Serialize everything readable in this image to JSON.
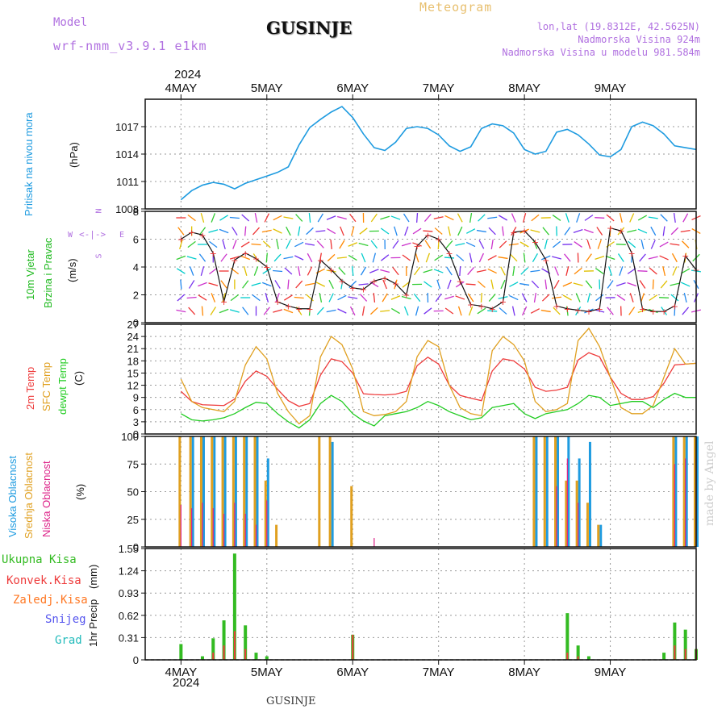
{
  "header": {
    "model_label": "Model",
    "model_name": "wrf-nmm_v3.9.1 e1km",
    "title": "GUSINJE",
    "product": "Meteogram",
    "lonlat": "lon,lat (19.8312E, 42.5625N)",
    "altitude": "Nadmorska Visina 924m",
    "model_altitude": "Nadmorska Visina u modelu 981.584m"
  },
  "footer": {
    "station": "GUSINJE",
    "credit": "made by Angel"
  },
  "colors": {
    "pressure": "#1e9be0",
    "temp": "#ee3b3b",
    "sfc_temp": "#e0a020",
    "dewpt": "#22cc22",
    "high_cloud": "#1e9be0",
    "mid_cloud": "#e0a020",
    "low_cloud": "#dd2288",
    "total_precip": "#33bb22",
    "conv_precip": "#ee3b3b",
    "frozen_precip": "#ff7722",
    "snow": "#5555ee",
    "grad": "#22bbbb",
    "wind_label": "#22bb22",
    "header_purple": "#b070e0"
  },
  "chart_data": {
    "type": "line",
    "year": "2024",
    "days": [
      "4MAY",
      "5MAY",
      "6MAY",
      "7MAY",
      "8MAY",
      "9MAY"
    ],
    "hours": [
      0,
      3,
      6,
      9,
      12,
      15,
      18,
      21,
      24,
      27,
      30,
      33,
      36,
      39,
      42,
      45,
      48,
      51,
      54,
      57,
      60,
      63,
      66,
      69,
      72,
      75,
      78,
      81,
      84,
      87,
      90,
      93,
      96,
      99,
      102,
      105,
      108,
      111,
      114,
      117,
      120,
      123,
      126,
      129,
      132,
      135,
      138,
      141,
      144
    ],
    "x_axis": {
      "start_hour": -10,
      "end_hour": 144,
      "note": "hours from 4MAY 00UTC"
    },
    "panels": [
      {
        "name": "pressure",
        "ylabel": "Pritisak na nivou mora",
        "units": "(hPa)",
        "yticks": [
          "1008",
          "1011",
          "1014",
          "1017"
        ],
        "ylim": [
          1008,
          1020
        ],
        "grid": true,
        "series": [
          {
            "values": [
              1009.0,
              1010.0,
              1010.6,
              1010.9,
              1010.7,
              1010.2,
              1010.8,
              1011.2,
              1011.6,
              1012.0,
              1012.6,
              1015.0,
              1016.9,
              1017.8,
              1018.6,
              1019.2,
              1018.0,
              1016.2,
              1014.7,
              1014.4,
              1015.3,
              1016.8,
              1017.0,
              1016.8,
              1016.1,
              1014.9,
              1014.3,
              1014.8,
              1016.8,
              1017.3,
              1017.1,
              1016.3,
              1014.5,
              1014.0,
              1014.3,
              1016.4,
              1016.7,
              1016.1,
              1015.1,
              1013.9,
              1013.7,
              1014.5,
              1017.0,
              1017.5,
              1017.1,
              1016.2,
              1014.9,
              1014.7,
              1014.5
            ]
          }
        ]
      },
      {
        "name": "wind",
        "ylabel_lines": [
          "10m Vjetar",
          "Brzina i Pravac"
        ],
        "units": "(m/s)",
        "yticks": [
          "0",
          "2",
          "4",
          "6",
          "8"
        ],
        "ylim": [
          0,
          8
        ],
        "compass": {
          "n": "N",
          "s": "S",
          "e": "E",
          "w": "W"
        },
        "grid": true,
        "series": [
          {
            "values": [
              6.0,
              6.5,
              6.3,
              5.0,
              1.5,
              4.5,
              5.0,
              4.6,
              4.0,
              1.5,
              1.2,
              1.0,
              1.0,
              4.5,
              3.8,
              3.0,
              2.5,
              2.4,
              3.0,
              3.2,
              2.8,
              2.0,
              5.5,
              6.3,
              6.0,
              5.0,
              3.0,
              1.3,
              1.2,
              1.0,
              1.5,
              6.5,
              6.6,
              5.8,
              4.5,
              1.2,
              1.0,
              0.9,
              0.8,
              1.0,
              6.8,
              6.6,
              5.0,
              1.0,
              0.8,
              0.8,
              1.2,
              4.8,
              3.8
            ]
          }
        ]
      },
      {
        "name": "temperature",
        "ylabel_lines": [
          "2m Temp",
          "SFC Temp",
          "dewpt Temp"
        ],
        "units": "(C)",
        "yticks": [
          "0",
          "3",
          "6",
          "9",
          "12",
          "15",
          "18",
          "21",
          "24",
          "27"
        ],
        "ylim": [
          0,
          27
        ],
        "grid": true,
        "series": [
          {
            "name": "2m Temp",
            "values": [
              10.5,
              8.0,
              7.2,
              7.1,
              7.0,
              8.6,
              13.0,
              15.5,
              14.2,
              11.0,
              8.2,
              6.8,
              7.5,
              14.5,
              18.5,
              17.8,
              15.0,
              9.9,
              9.7,
              9.6,
              9.8,
              10.5,
              16.8,
              18.9,
              17.2,
              12.0,
              9.5,
              8.8,
              8.2,
              15.5,
              18.5,
              18.0,
              16.0,
              11.5,
              10.5,
              10.8,
              11.5,
              18.2,
              20.0,
              19.0,
              14.0,
              10.0,
              8.5,
              8.5,
              9.2,
              12.5,
              17.0,
              17.2,
              17.4
            ]
          },
          {
            "name": "SFC Temp",
            "values": [
              13.5,
              8.0,
              6.5,
              6.0,
              5.5,
              8.0,
              17.0,
              21.5,
              18.5,
              10.0,
              5.5,
              2.5,
              4.5,
              19.0,
              24.0,
              22.0,
              16.0,
              5.5,
              4.5,
              4.8,
              5.5,
              8.0,
              19.0,
              23.0,
              21.5,
              12.0,
              6.5,
              5.0,
              4.5,
              20.5,
              24.0,
              22.0,
              18.0,
              8.0,
              5.5,
              6.0,
              7.5,
              23.0,
              26.0,
              21.5,
              14.0,
              6.5,
              5.0,
              5.0,
              7.0,
              14.0,
              21.0,
              17.2,
              17.4
            ]
          },
          {
            "name": "dewpt Temp",
            "values": [
              5.0,
              3.5,
              3.2,
              3.5,
              4.0,
              5.0,
              6.5,
              7.8,
              7.5,
              5.0,
              3.0,
              1.5,
              3.5,
              7.5,
              9.5,
              8.0,
              5.0,
              3.2,
              2.0,
              4.5,
              5.0,
              5.5,
              6.5,
              8.0,
              7.0,
              5.5,
              4.5,
              3.5,
              4.0,
              6.5,
              7.0,
              7.5,
              5.0,
              3.8,
              5.0,
              5.5,
              6.0,
              7.5,
              9.5,
              9.0,
              7.0,
              7.5,
              8.0,
              8.0,
              6.5,
              8.5,
              10.0,
              9.0,
              9.0
            ]
          }
        ]
      },
      {
        "name": "cloud",
        "ylabel_lines": [
          "Visoka Oblacnost",
          "Srednja Oblacnost",
          "Niska Oblacnost"
        ],
        "units": "(%)",
        "yticks": [
          "0",
          "25",
          "50",
          "75",
          "100"
        ],
        "ylim": [
          0,
          100
        ],
        "grid": true,
        "series": [
          {
            "name": "Visoka Oblacnost",
            "values": [
              0,
              100,
              100,
              100,
              100,
              100,
              100,
              100,
              80,
              0,
              0,
              0,
              0,
              0,
              95,
              0,
              0,
              0,
              0,
              0,
              0,
              0,
              0,
              0,
              0,
              0,
              0,
              0,
              0,
              0,
              0,
              0,
              0,
              100,
              100,
              100,
              100,
              80,
              95,
              20,
              0,
              0,
              0,
              0,
              0,
              0,
              100,
              100,
              100
            ]
          },
          {
            "name": "Srednja Oblacnost",
            "values": [
              100,
              100,
              100,
              100,
              100,
              100,
              100,
              100,
              60,
              20,
              0,
              0,
              0,
              100,
              100,
              0,
              55,
              0,
              0,
              0,
              0,
              0,
              0,
              0,
              0,
              0,
              0,
              0,
              0,
              0,
              0,
              0,
              0,
              100,
              100,
              100,
              60,
              60,
              40,
              20,
              0,
              0,
              0,
              0,
              0,
              0,
              100,
              100,
              100
            ]
          },
          {
            "name": "Niska Oblacnost",
            "values": [
              38,
              35,
              40,
              35,
              30,
              40,
              30,
              20,
              42,
              0,
              0,
              0,
              0,
              0,
              0,
              0,
              0,
              0,
              8,
              0,
              0,
              0,
              0,
              0,
              0,
              0,
              0,
              0,
              0,
              0,
              0,
              0,
              0,
              0,
              0,
              55,
              80,
              40,
              0,
              0,
              0,
              0,
              0,
              0,
              0,
              0,
              75,
              80,
              80
            ]
          }
        ]
      },
      {
        "name": "precip",
        "ylabel": "1hr Precip",
        "units": "(mm)",
        "yticks": [
          "0",
          "0.31",
          "0.62",
          "0.93",
          "1.24",
          "1.55"
        ],
        "ylim": [
          0,
          1.55
        ],
        "grid": true,
        "legend": [
          "Ukupna Kisa",
          "Konvek.Kisa",
          "Zaledj.Kisa",
          "Snijeg",
          "Grad"
        ],
        "series": [
          {
            "name": "Ukupna Kisa",
            "values": [
              0.22,
              0,
              0.05,
              0.3,
              0.55,
              1.48,
              0.48,
              0.1,
              0.05,
              0,
              0,
              0,
              0,
              0,
              0,
              0,
              0.35,
              0,
              0,
              0,
              0,
              0,
              0,
              0,
              0,
              0,
              0,
              0,
              0,
              0,
              0,
              0,
              0,
              0,
              0,
              0,
              0.65,
              0.2,
              0.05,
              0,
              0,
              0,
              0,
              0,
              0,
              0.1,
              0.52,
              0.42,
              0.15
            ]
          },
          {
            "name": "Konvek.Kisa",
            "values": [
              0,
              0,
              0,
              0.1,
              0.2,
              0.4,
              0.15,
              0,
              0,
              0,
              0,
              0,
              0,
              0,
              0,
              0,
              0.35,
              0,
              0,
              0,
              0,
              0,
              0,
              0,
              0,
              0,
              0,
              0,
              0,
              0,
              0,
              0,
              0,
              0,
              0,
              0,
              0.1,
              0.05,
              0,
              0,
              0,
              0,
              0,
              0,
              0,
              0,
              0.2,
              0.15,
              0.15
            ]
          }
        ]
      }
    ]
  }
}
